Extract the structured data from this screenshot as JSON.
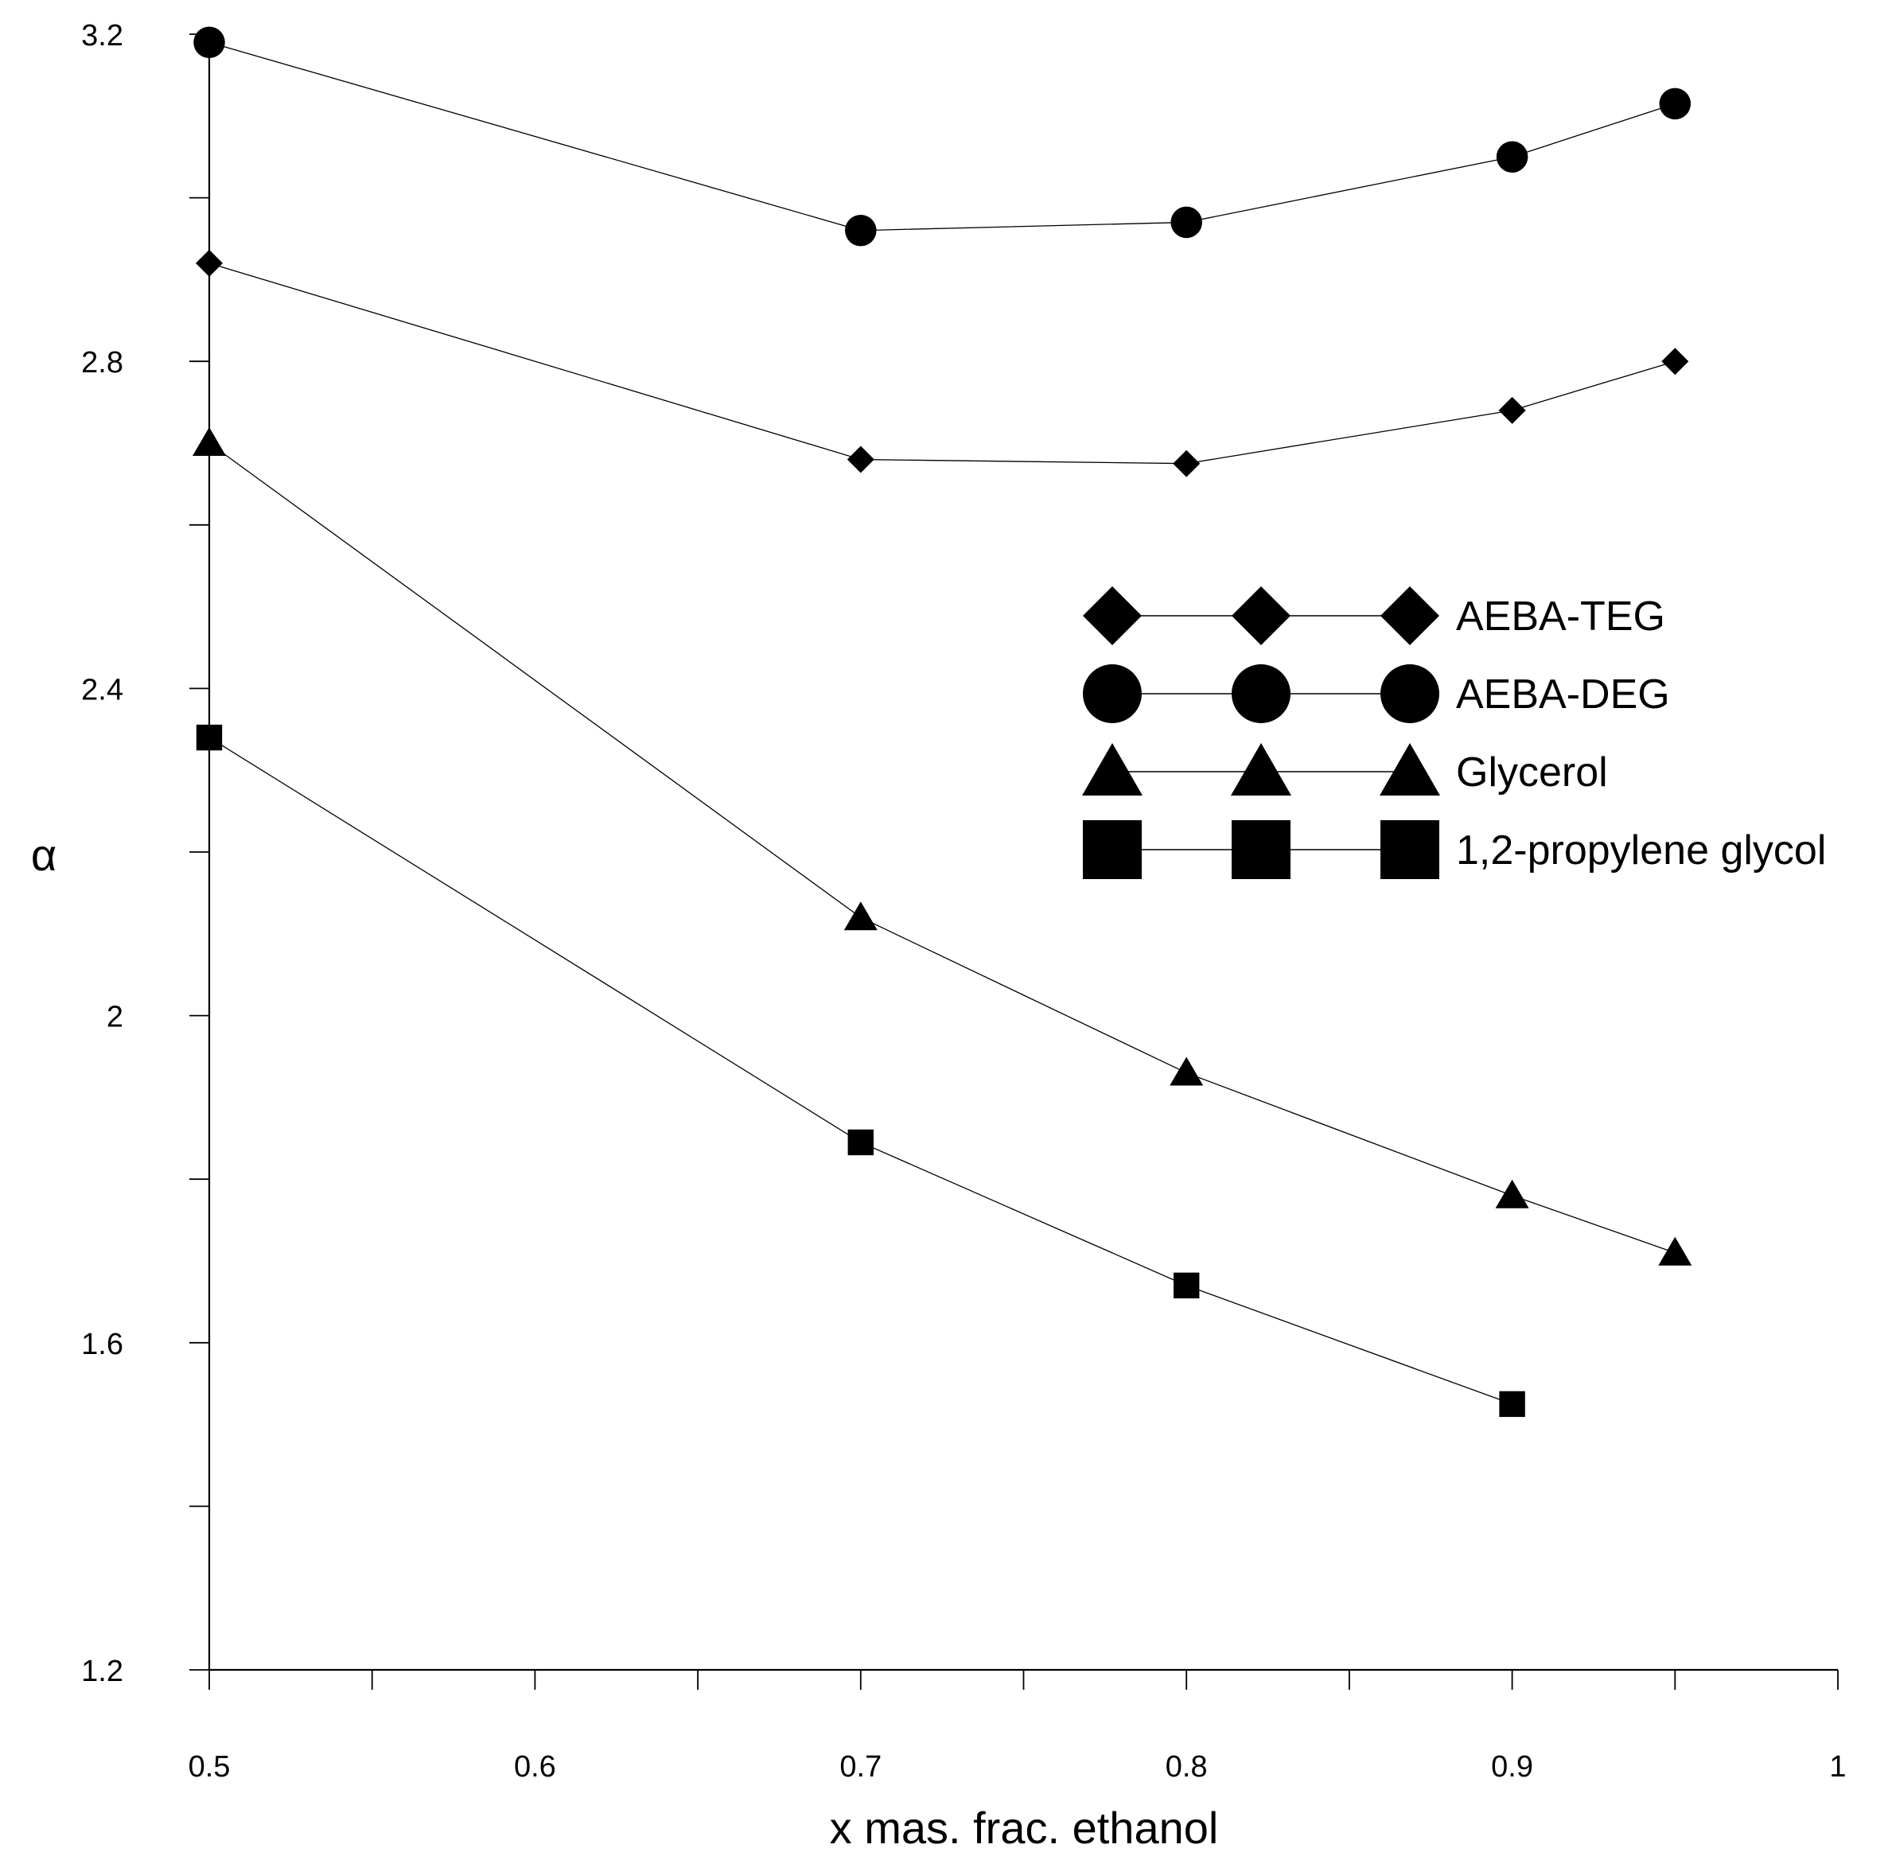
{
  "chart_data": {
    "type": "line",
    "title": "",
    "xlabel": "x mas. frac. ethanol",
    "ylabel": "α",
    "xlim": [
      0.5,
      1.0
    ],
    "ylim": [
      1.2,
      3.2
    ],
    "x_ticks": [
      "0.5",
      "0.6",
      "0.7",
      "0.8",
      "0.9",
      "1"
    ],
    "y_ticks": [
      "1.2",
      "1.6",
      "2",
      "2.4",
      "2.8",
      "3.2"
    ],
    "x_tick_values": [
      0.5,
      0.6,
      0.7,
      0.8,
      0.9,
      1.0
    ],
    "y_tick_values": [
      1.2,
      1.6,
      2.0,
      2.4,
      2.8,
      3.2
    ],
    "x_minor_ticks": [
      0.55,
      0.65,
      0.75,
      0.85,
      0.95
    ],
    "y_minor_ticks": [
      1.4,
      1.8,
      2.2,
      2.6,
      3.0
    ],
    "grid": false,
    "legend_position": "right-middle",
    "series": [
      {
        "name": "AEBA-TEG",
        "marker": "diamond",
        "x": [
          0.5,
          0.7,
          0.8,
          0.9,
          0.95
        ],
        "y": [
          2.92,
          2.68,
          2.675,
          2.74,
          2.8
        ]
      },
      {
        "name": "AEBA-DEG",
        "marker": "circle",
        "x": [
          0.5,
          0.7,
          0.8,
          0.9,
          0.95
        ],
        "y": [
          3.19,
          2.96,
          2.97,
          3.05,
          3.115
        ]
      },
      {
        "name": "Glycerol",
        "marker": "triangle",
        "x": [
          0.5,
          0.7,
          0.8,
          0.9,
          0.95
        ],
        "y": [
          2.7,
          2.12,
          1.93,
          1.78,
          1.71
        ]
      },
      {
        "name": "1,2-propylene glycol",
        "marker": "square",
        "x": [
          0.5,
          0.7,
          0.8,
          0.9
        ],
        "y": [
          2.34,
          1.845,
          1.67,
          1.525
        ]
      }
    ]
  }
}
